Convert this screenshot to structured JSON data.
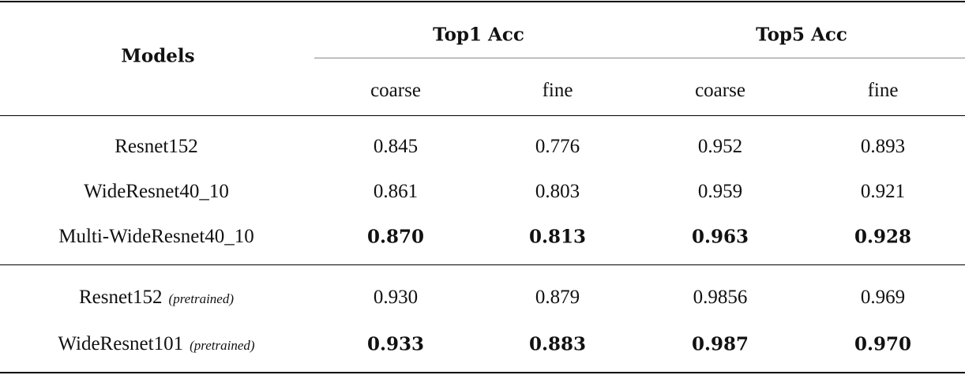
{
  "header": {
    "models": "Models",
    "groups": [
      "Top1 Acc",
      "Top5 Acc"
    ],
    "subcols": [
      "coarse",
      "fine",
      "coarse",
      "fine"
    ]
  },
  "rows": [
    {
      "model": "Resnet152",
      "note": "",
      "values": [
        "0.845",
        "0.776",
        "0.952",
        "0.893"
      ],
      "bold": false
    },
    {
      "model": "WideResnet40_10",
      "note": "",
      "values": [
        "0.861",
        "0.803",
        "0.959",
        "0.921"
      ],
      "bold": false
    },
    {
      "model": "Multi-WideResnet40_10",
      "note": "",
      "values": [
        "0.870",
        "0.813",
        "0.963",
        "0.928"
      ],
      "bold": true
    },
    {
      "model": "Resnet152",
      "note": "(pretrained)",
      "values": [
        "0.930",
        "0.879",
        "0.9856",
        "0.969"
      ],
      "bold": false
    },
    {
      "model": "WideResnet101",
      "note": "(pretrained)",
      "values": [
        "0.933",
        "0.883",
        "0.987",
        "0.970"
      ],
      "bold": true
    }
  ]
}
